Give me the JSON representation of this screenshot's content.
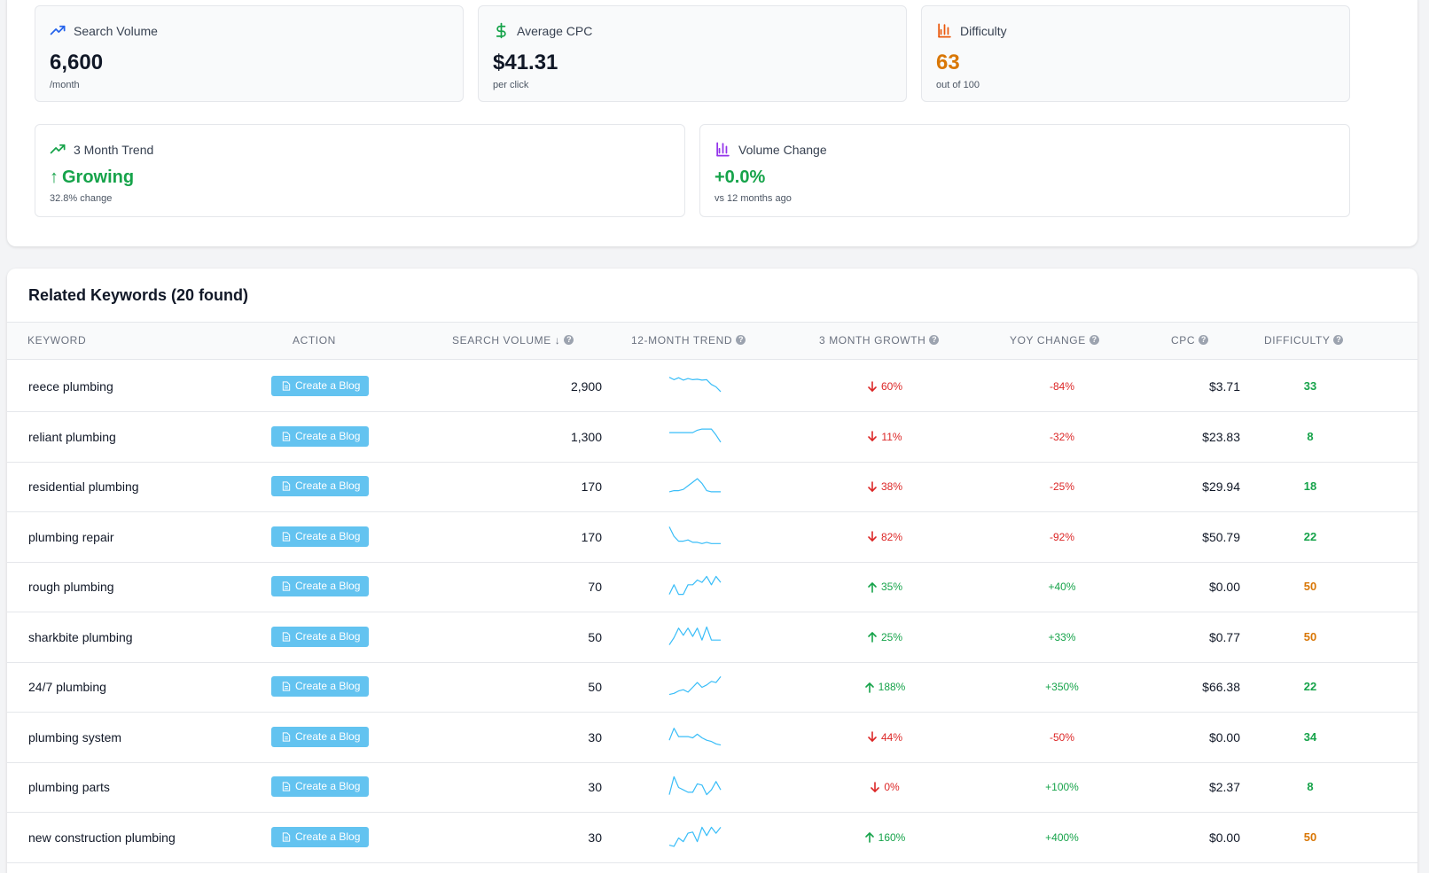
{
  "stats": {
    "search_volume": {
      "label": "Search Volume",
      "value": "6,600",
      "sub": "/month",
      "icon": "trending-up-icon",
      "color": "#2563eb"
    },
    "cpc": {
      "label": "Average CPC",
      "value": "$41.31",
      "sub": "per click",
      "icon": "dollar-icon",
      "color": "#16a34a"
    },
    "difficulty": {
      "label": "Difficulty",
      "value": "63",
      "sub": "out of 100",
      "icon": "bar-chart-icon",
      "color": "#ea580c"
    },
    "trend": {
      "label": "3 Month Trend",
      "arrow": "↑",
      "value": "Growing",
      "sub": "32.8% change",
      "icon": "trending-up-icon",
      "color": "#16a34a"
    },
    "volume_change": {
      "label": "Volume Change",
      "value": "+0.0%",
      "sub": "vs 12 months ago",
      "icon": "bar-chart-icon",
      "color": "#9333ea"
    }
  },
  "keywords": {
    "title": "Related Keywords (20 found)",
    "columns": {
      "keyword": "Keyword",
      "action": "Action",
      "volume": "Search Volume ↓",
      "trend": "12-Month Trend",
      "growth": "3 Month Growth",
      "yoy": "YoY Change",
      "cpc": "CPC",
      "difficulty": "Difficulty"
    },
    "button_label": "Create a Blog",
    "rows": [
      {
        "keyword": "reece plumbing",
        "volume": "2,900",
        "growth": "60%",
        "growth_dir": "down",
        "yoy": "-84%",
        "cpc": "$3.71",
        "difficulty": "33",
        "trend": [
          90,
          80,
          88,
          78,
          85,
          80,
          82,
          78,
          80,
          60,
          50,
          30
        ]
      },
      {
        "keyword": "reliant plumbing",
        "volume": "1,300",
        "growth": "11%",
        "growth_dir": "down",
        "yoy": "-32%",
        "cpc": "$23.83",
        "difficulty": "8",
        "trend": [
          70,
          70,
          70,
          70,
          70,
          70,
          80,
          85,
          85,
          85,
          60,
          30
        ]
      },
      {
        "keyword": "residential plumbing",
        "volume": "170",
        "growth": "38%",
        "growth_dir": "down",
        "yoy": "-25%",
        "cpc": "$29.94",
        "difficulty": "18",
        "trend": [
          30,
          35,
          35,
          40,
          55,
          70,
          85,
          65,
          35,
          30,
          30,
          30
        ]
      },
      {
        "keyword": "plumbing repair",
        "volume": "170",
        "growth": "82%",
        "growth_dir": "down",
        "yoy": "-92%",
        "cpc": "$50.79",
        "difficulty": "22",
        "trend": [
          95,
          55,
          35,
          35,
          40,
          30,
          30,
          25,
          30,
          25,
          25,
          25
        ]
      },
      {
        "keyword": "rough plumbing",
        "volume": "70",
        "growth": "35%",
        "growth_dir": "up",
        "yoy": "+40%",
        "cpc": "$0.00",
        "difficulty": "50",
        "trend": [
          20,
          60,
          20,
          20,
          60,
          60,
          80,
          70,
          95,
          60,
          95,
          70
        ]
      },
      {
        "keyword": "sharkbite plumbing",
        "volume": "50",
        "growth": "25%",
        "growth_dir": "up",
        "yoy": "+33%",
        "cpc": "$0.77",
        "difficulty": "50",
        "trend": [
          20,
          50,
          90,
          60,
          90,
          55,
          90,
          40,
          95,
          40,
          40,
          40
        ]
      },
      {
        "keyword": "24/7 plumbing",
        "volume": "50",
        "growth": "188%",
        "growth_dir": "up",
        "yoy": "+350%",
        "cpc": "$66.38",
        "difficulty": "22",
        "trend": [
          20,
          25,
          35,
          40,
          30,
          50,
          70,
          50,
          60,
          75,
          70,
          95
        ]
      },
      {
        "keyword": "plumbing system",
        "volume": "30",
        "growth": "44%",
        "growth_dir": "down",
        "yoy": "-50%",
        "cpc": "$0.00",
        "difficulty": "34",
        "trend": [
          40,
          90,
          55,
          55,
          55,
          50,
          65,
          50,
          40,
          35,
          25,
          20
        ]
      },
      {
        "keyword": "plumbing parts",
        "volume": "30",
        "growth": "0%",
        "growth_dir": "down",
        "yoy": "+100%",
        "cpc": "$2.37",
        "difficulty": "8",
        "trend": [
          20,
          95,
          50,
          40,
          30,
          30,
          65,
          60,
          20,
          40,
          75,
          40
        ]
      },
      {
        "keyword": "new construction plumbing",
        "volume": "30",
        "growth": "160%",
        "growth_dir": "up",
        "yoy": "+400%",
        "cpc": "$0.00",
        "difficulty": "50",
        "trend": [
          20,
          15,
          50,
          35,
          70,
          75,
          35,
          95,
          60,
          95,
          70,
          95
        ]
      }
    ]
  }
}
